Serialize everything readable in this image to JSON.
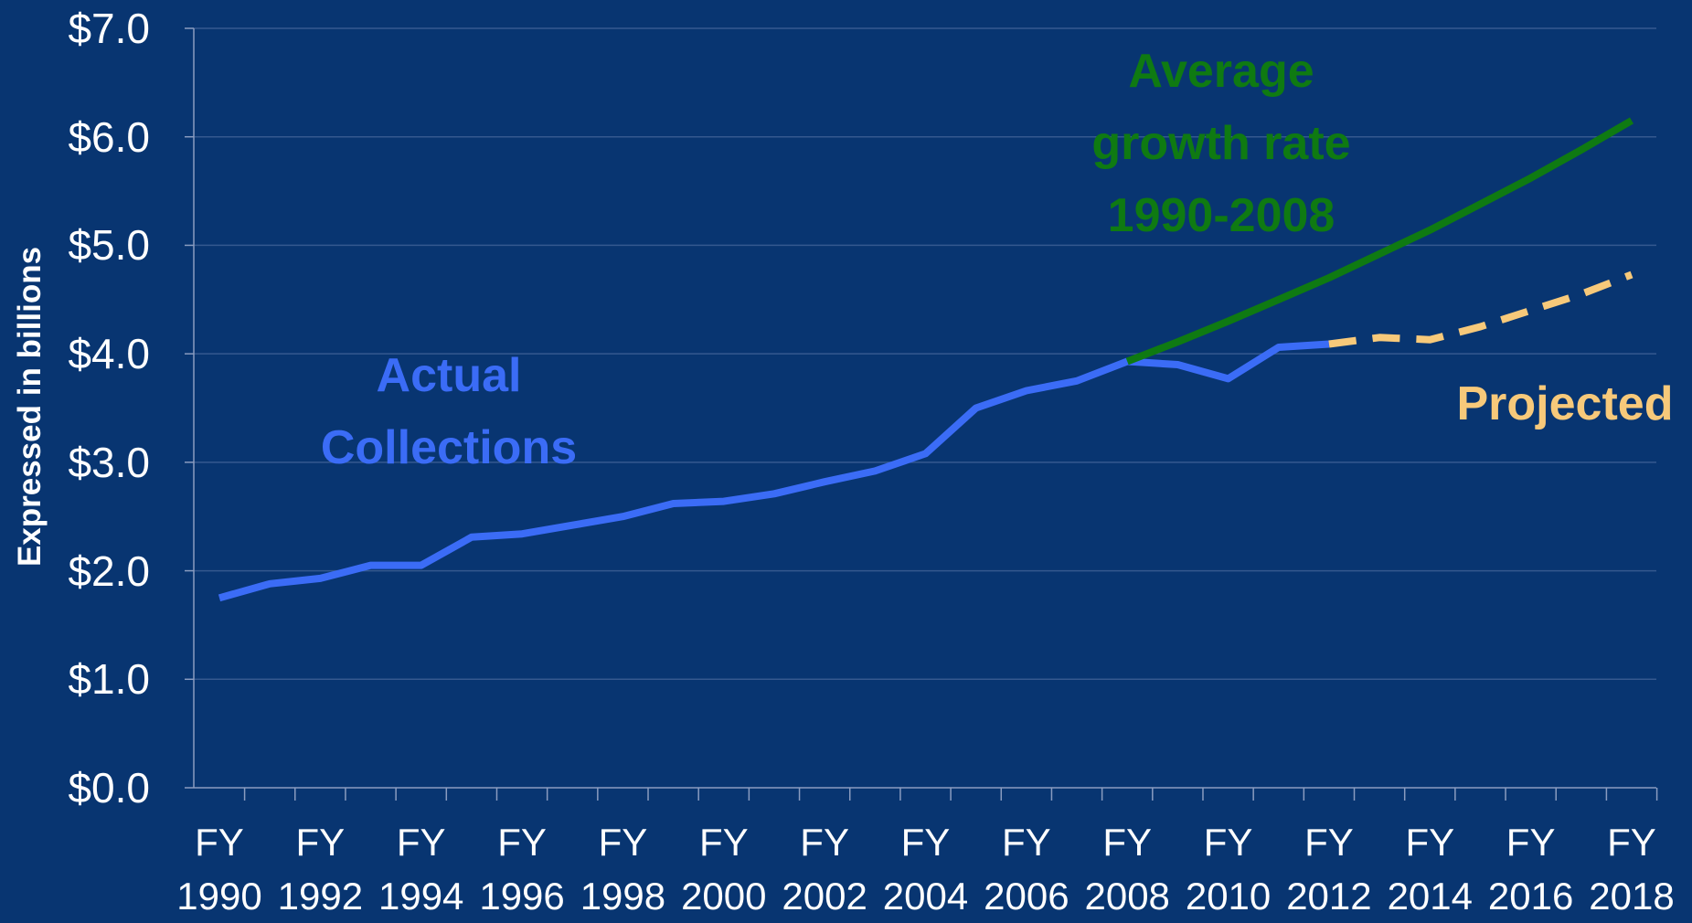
{
  "chart_data": {
    "type": "line",
    "y_label": "Expressed in billions",
    "categories": [
      "FY 1990",
      null,
      "FY 1992",
      null,
      "FY 1994",
      null,
      "FY 1996",
      null,
      "FY 1998",
      null,
      "FY 2000",
      null,
      "FY 2002",
      null,
      "FY 2004",
      null,
      "FY 2006",
      null,
      "FY 2008",
      null,
      "FY 2010",
      null,
      "FY 2012",
      null,
      "FY 2014",
      null,
      "FY 2016",
      null,
      "FY 2018"
    ],
    "ylim": [
      0,
      7
    ],
    "yticks": [
      {
        "value": 0,
        "label": "$0.0"
      },
      {
        "value": 1,
        "label": "$1.0"
      },
      {
        "value": 2,
        "label": "$2.0"
      },
      {
        "value": 3,
        "label": "$3.0"
      },
      {
        "value": 4,
        "label": "$4.0"
      },
      {
        "value": 5,
        "label": "$5.0"
      },
      {
        "value": 6,
        "label": "$6.0"
      },
      {
        "value": 7,
        "label": "$7.0"
      }
    ],
    "grid": true,
    "series": [
      {
        "name": "Actual Collections",
        "color": "#3b6cf6",
        "style": "solid",
        "values": [
          1.75,
          1.88,
          1.93,
          2.05,
          2.05,
          2.31,
          2.34,
          2.42,
          2.5,
          2.62,
          2.64,
          2.71,
          2.82,
          2.92,
          3.08,
          3.5,
          3.66,
          3.75,
          3.93,
          3.9,
          3.77,
          4.06,
          4.09,
          null,
          null,
          null,
          null,
          null,
          null
        ]
      },
      {
        "name": "Projected",
        "color": "#f7c97a",
        "style": "dashed",
        "values": [
          null,
          null,
          null,
          null,
          null,
          null,
          null,
          null,
          null,
          null,
          null,
          null,
          null,
          null,
          null,
          null,
          null,
          null,
          null,
          null,
          null,
          null,
          4.09,
          4.15,
          4.13,
          4.25,
          4.4,
          4.55,
          4.73
        ]
      },
      {
        "name": "Average growth rate 1990-2008",
        "color": "#0f7a12",
        "style": "solid",
        "values": [
          null,
          null,
          null,
          null,
          null,
          null,
          null,
          null,
          null,
          null,
          null,
          null,
          null,
          null,
          null,
          null,
          null,
          null,
          3.93,
          4.11,
          4.3,
          4.5,
          4.7,
          4.92,
          5.14,
          5.38,
          5.62,
          5.88,
          6.15
        ]
      }
    ]
  }
}
